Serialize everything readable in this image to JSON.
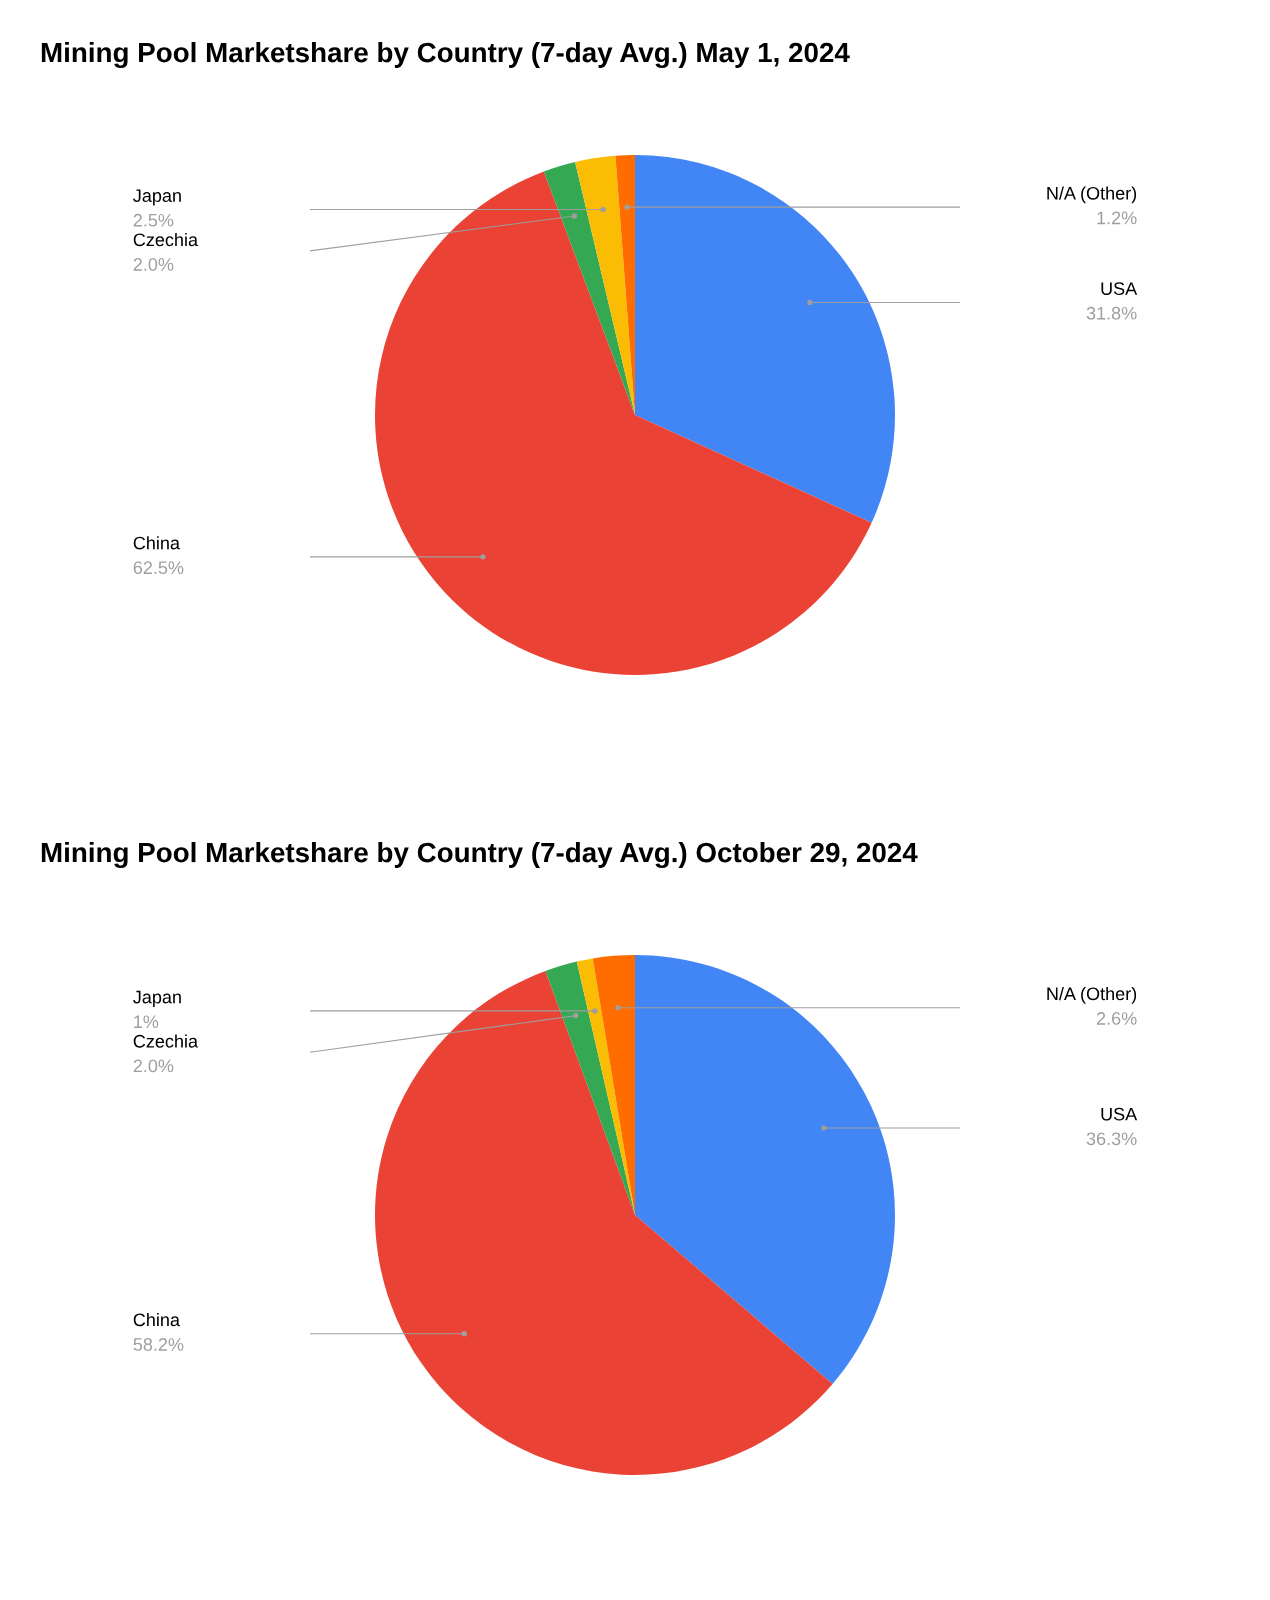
{
  "chart_data": [
    {
      "type": "pie",
      "title": "Mining Pool Marketshare by Country (7-day Avg.) May 1, 2024",
      "categories": [
        "USA",
        "China",
        "Czechia",
        "Japan",
        "N/A (Other)"
      ],
      "values": [
        31.8,
        62.5,
        2.0,
        2.5,
        1.2
      ],
      "value_labels": [
        "31.8%",
        "62.5%",
        "2.0%",
        "2.5%",
        "1.2%"
      ],
      "colors": [
        "#4285f4",
        "#ea4335",
        "#34a853",
        "#fbbc04",
        "#ff6d01"
      ],
      "legend": false
    },
    {
      "type": "pie",
      "title": "Mining Pool Marketshare by Country (7-day Avg.) October 29, 2024",
      "categories": [
        "USA",
        "China",
        "Czechia",
        "Japan",
        "N/A (Other)"
      ],
      "values": [
        36.3,
        58.2,
        2.0,
        1,
        2.6
      ],
      "value_labels": [
        "36.3%",
        "58.2%",
        "2.0%",
        "1%",
        "2.6%"
      ],
      "colors": [
        "#4285f4",
        "#ea4335",
        "#34a853",
        "#fbbc04",
        "#ff6d01"
      ],
      "legend": false
    }
  ]
}
